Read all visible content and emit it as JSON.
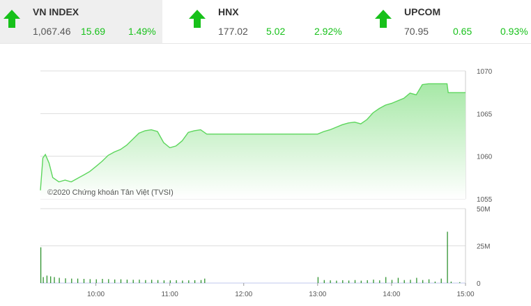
{
  "tickers": [
    {
      "name": "VN INDEX",
      "value": "1,067.46",
      "change": "15.69",
      "pct": "1.49%"
    },
    {
      "name": "HNX",
      "value": "177.02",
      "change": "5.02",
      "pct": "2.92%"
    },
    {
      "name": "UPCOM",
      "value": "70.95",
      "change": "0.65",
      "pct": "0.93%"
    }
  ],
  "colors": {
    "up": "#17c11a",
    "line": "#5cd65c",
    "fill": "#c9f0c9",
    "volume": "#1f8a1f"
  },
  "watermark": "©2020 Chứng khoán Tân Việt (TVSI)",
  "chart_data": [
    {
      "type": "area",
      "y_ticks": [
        1055,
        1060,
        1065,
        1070
      ],
      "ylim": [
        1055,
        1070
      ],
      "xlim": [
        "09:15",
        "15:00"
      ],
      "grid": true,
      "points": [
        [
          "09:15",
          1056.0
        ],
        [
          "09:17",
          1059.8
        ],
        [
          "09:19",
          1060.2
        ],
        [
          "09:22",
          1059.2
        ],
        [
          "09:25",
          1057.5
        ],
        [
          "09:30",
          1057.0
        ],
        [
          "09:35",
          1057.2
        ],
        [
          "09:40",
          1057.0
        ],
        [
          "09:45",
          1057.4
        ],
        [
          "09:50",
          1057.8
        ],
        [
          "09:55",
          1058.2
        ],
        [
          "10:00",
          1058.8
        ],
        [
          "10:05",
          1059.4
        ],
        [
          "10:10",
          1060.1
        ],
        [
          "10:15",
          1060.5
        ],
        [
          "10:20",
          1060.8
        ],
        [
          "10:25",
          1061.3
        ],
        [
          "10:30",
          1062.0
        ],
        [
          "10:35",
          1062.7
        ],
        [
          "10:40",
          1063.0
        ],
        [
          "10:45",
          1063.1
        ],
        [
          "10:50",
          1062.9
        ],
        [
          "10:55",
          1061.6
        ],
        [
          "11:00",
          1061.0
        ],
        [
          "11:05",
          1061.2
        ],
        [
          "11:10",
          1061.8
        ],
        [
          "11:15",
          1062.8
        ],
        [
          "11:20",
          1063.0
        ],
        [
          "11:25",
          1063.1
        ],
        [
          "11:30",
          1062.6
        ],
        [
          "13:00",
          1062.6
        ],
        [
          "13:05",
          1062.9
        ],
        [
          "13:10",
          1063.1
        ],
        [
          "13:15",
          1063.4
        ],
        [
          "13:20",
          1063.7
        ],
        [
          "13:25",
          1063.9
        ],
        [
          "13:30",
          1064.0
        ],
        [
          "13:35",
          1063.8
        ],
        [
          "13:40",
          1064.3
        ],
        [
          "13:45",
          1065.1
        ],
        [
          "13:50",
          1065.6
        ],
        [
          "13:55",
          1066.0
        ],
        [
          "14:00",
          1066.2
        ],
        [
          "14:05",
          1066.5
        ],
        [
          "14:10",
          1066.8
        ],
        [
          "14:15",
          1067.4
        ],
        [
          "14:20",
          1067.2
        ],
        [
          "14:25",
          1068.4
        ],
        [
          "14:30",
          1068.5
        ],
        [
          "14:35",
          1068.5
        ],
        [
          "14:45",
          1068.5
        ],
        [
          "14:46",
          1067.46
        ],
        [
          "15:00",
          1067.46
        ]
      ]
    },
    {
      "type": "bar",
      "y_ticks": [
        "0",
        "25M",
        "50M"
      ],
      "ylim": [
        0,
        50
      ],
      "x_ticks": [
        "10:00",
        "11:00",
        "12:00",
        "13:00",
        "14:00",
        "15:00"
      ],
      "xlim": [
        "09:15",
        "15:00"
      ],
      "grid": true,
      "bars": [
        [
          "09:15",
          24.0
        ],
        [
          "09:17",
          4.0
        ],
        [
          "09:20",
          5.0
        ],
        [
          "09:23",
          4.5
        ],
        [
          "09:26",
          4.0
        ],
        [
          "09:30",
          3.5
        ],
        [
          "09:35",
          3.2
        ],
        [
          "09:40",
          3.0
        ],
        [
          "09:45",
          3.0
        ],
        [
          "09:50",
          2.8
        ],
        [
          "09:55",
          2.6
        ],
        [
          "10:00",
          2.5
        ],
        [
          "10:05",
          2.8
        ],
        [
          "10:10",
          2.6
        ],
        [
          "10:15",
          2.4
        ],
        [
          "10:20",
          2.5
        ],
        [
          "10:25",
          2.3
        ],
        [
          "10:30",
          2.2
        ],
        [
          "10:35",
          2.3
        ],
        [
          "10:40",
          2.0
        ],
        [
          "10:45",
          2.2
        ],
        [
          "10:50",
          2.0
        ],
        [
          "10:55",
          1.8
        ],
        [
          "11:00",
          1.8
        ],
        [
          "11:05",
          1.9
        ],
        [
          "11:10",
          1.7
        ],
        [
          "11:15",
          1.8
        ],
        [
          "11:20",
          1.9
        ],
        [
          "11:25",
          2.0
        ],
        [
          "11:28",
          3.0
        ],
        [
          "13:00",
          4.0
        ],
        [
          "13:05",
          2.0
        ],
        [
          "13:10",
          1.8
        ],
        [
          "13:15",
          1.6
        ],
        [
          "13:20",
          1.9
        ],
        [
          "13:25",
          1.7
        ],
        [
          "13:30",
          2.0
        ],
        [
          "13:35",
          1.6
        ],
        [
          "13:40",
          1.9
        ],
        [
          "13:45",
          2.3
        ],
        [
          "13:50",
          1.8
        ],
        [
          "13:55",
          4.0
        ],
        [
          "14:00",
          2.1
        ],
        [
          "14:05",
          3.5
        ],
        [
          "14:10",
          2.0
        ],
        [
          "14:15",
          2.2
        ],
        [
          "14:20",
          3.5
        ],
        [
          "14:25",
          2.0
        ],
        [
          "14:30",
          2.5
        ],
        [
          "14:35",
          1.0
        ],
        [
          "14:40",
          3.0
        ],
        [
          "14:45",
          34.5
        ],
        [
          "14:48",
          1.0
        ],
        [
          "14:55",
          0.6
        ]
      ]
    }
  ]
}
